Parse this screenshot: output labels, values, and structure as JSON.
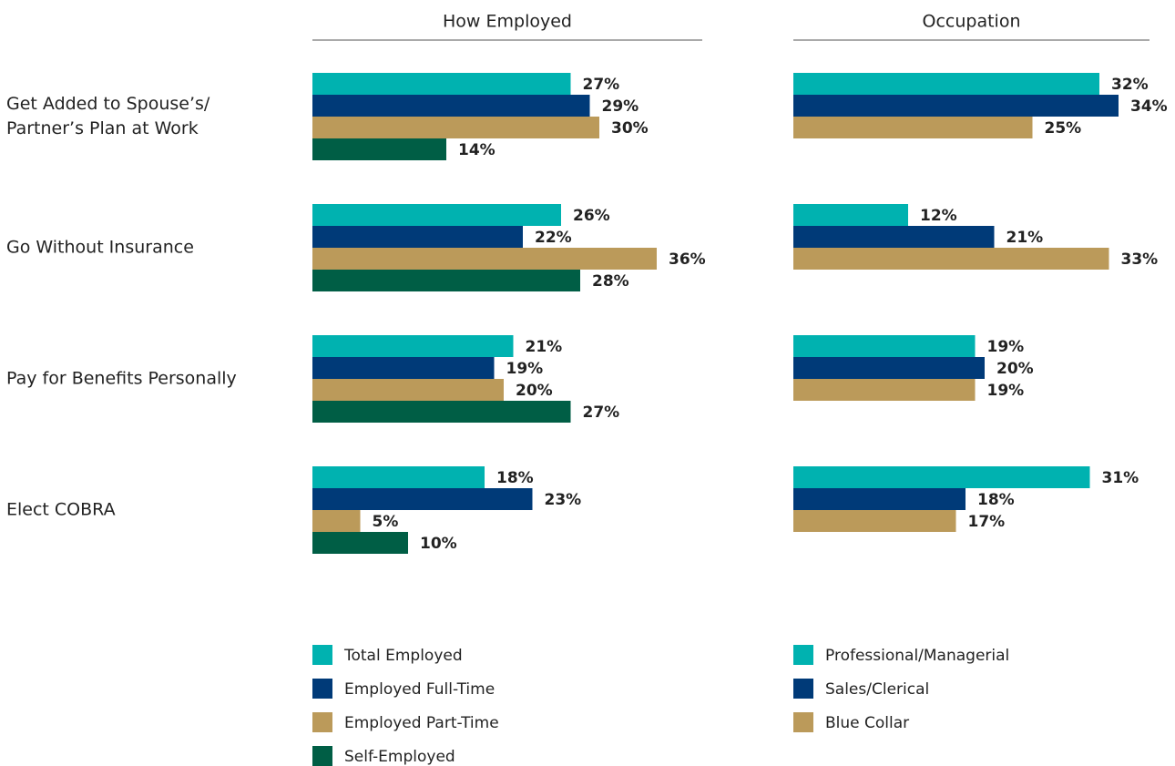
{
  "chart_data": [
    {
      "type": "barh",
      "title": "How Employed",
      "categories": [
        "Get Added to Spouse’s/ Partner’s Plan at Work",
        "Go Without Insurance",
        "Pay for Benefits Personally",
        "Elect COBRA"
      ],
      "series": [
        {
          "name": "Total Employed",
          "color": "#00b2b0",
          "values": [
            27,
            26,
            21,
            18
          ],
          "value_labels": [
            "27%",
            "26%",
            "21%",
            "18%"
          ]
        },
        {
          "name": "Employed Full-Time",
          "color": "#003a78",
          "values": [
            29,
            22,
            19,
            23
          ],
          "value_labels": [
            "29%",
            "22%",
            "19%",
            "23%"
          ]
        },
        {
          "name": "Employed Part-Time",
          "color": "#bb9a5a",
          "values": [
            30,
            36,
            20,
            5
          ],
          "value_labels": [
            "30%",
            "36%",
            "20%",
            "5%"
          ]
        },
        {
          "name": "Self-Employed",
          "color": "#005e45",
          "values": [
            14,
            28,
            27,
            10
          ],
          "value_labels": [
            "14%",
            "28%",
            "27%",
            "10%"
          ]
        }
      ]
    },
    {
      "type": "barh",
      "title": "Occupation",
      "series": [
        {
          "name": "Professional/Managerial",
          "color": "#00b2b0",
          "values": [
            32,
            12,
            19,
            31
          ],
          "value_labels": [
            "32%",
            "12%",
            "19%",
            "31%"
          ]
        },
        {
          "name": "Sales/Clerical",
          "color": "#003a78",
          "values": [
            34,
            21,
            20,
            18
          ],
          "value_labels": [
            "34%",
            "21%",
            "20%",
            "18%"
          ]
        },
        {
          "name": "Blue Collar",
          "color": "#bb9a5a",
          "values": [
            25,
            33,
            19,
            17
          ],
          "value_labels": [
            "25%",
            "33%",
            "19%",
            "17%"
          ]
        }
      ]
    }
  ]
}
